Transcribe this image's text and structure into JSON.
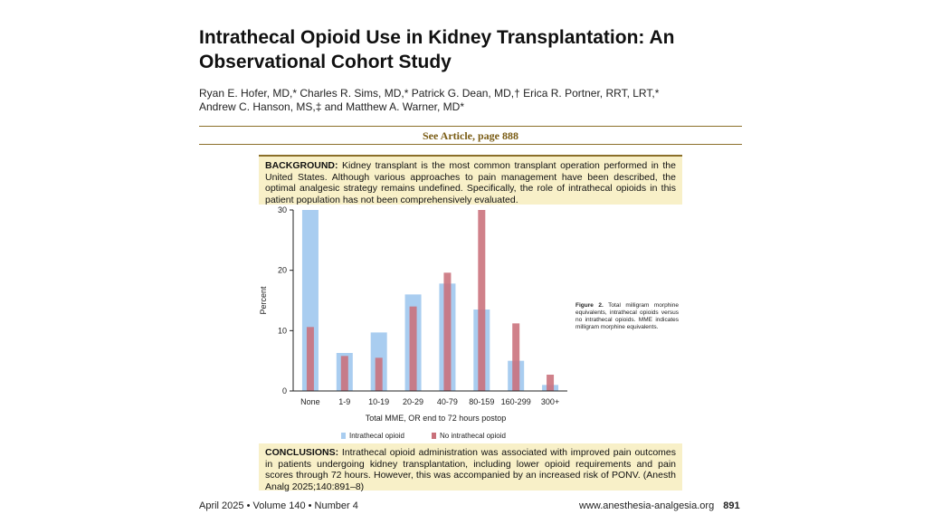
{
  "article": {
    "title": "Intrathecal Opioid Use in Kidney Transplantation: An Observational Cohort Study",
    "authors_line1": "Ryan E. Hofer, MD,* Charles R. Sims, MD,* Patrick G. Dean, MD,† Erica R. Portner, RRT, LRT,*",
    "authors_line2": "Andrew C. Hanson, MS,‡ and Matthew A. Warner, MD*",
    "see_article": "See Article, page 888"
  },
  "background": {
    "label": "BACKGROUND:",
    "text": " Kidney transplant is the most common transplant operation performed in the United States. Although various approaches to pain management have been described, the optimal analgesic strategy remains undefined. Specifically, the role of intrathecal opioids in this patient population has not been comprehensively evaluated."
  },
  "conclusions": {
    "label": "CONCLUSIONS:",
    "text": " Intrathecal opioid administration was associated with improved pain outcomes in patients undergoing kidney transplantation, including lower opioid requirements and pain scores through 72 hours. However, this was accompanied by an increased risk of PONV. (Anesth Analg 2025;140:891–8)"
  },
  "figure_caption": {
    "label": "Figure 2.",
    "text": " Total milligram morphine equivalents, intrathecal opioids versus no intrathecal opioids. MME indicates milligram morphine equivalents."
  },
  "footer": {
    "issue": "April 2025 • Volume 140 • Number 4",
    "website": "www.anesthesia-analgesia.org",
    "page": "891"
  },
  "chart_data": {
    "type": "bar",
    "title": "",
    "xlabel": "Total MME, OR end to 72 hours postop",
    "ylabel": "Percent",
    "ylim": [
      0,
      30
    ],
    "yticks": [
      0,
      10,
      20,
      30
    ],
    "grid": false,
    "legend_position": "bottom",
    "categories": [
      "None",
      "1-9",
      "10-19",
      "20-29",
      "40-79",
      "80-159",
      "160-299",
      "300+"
    ],
    "series": [
      {
        "name": "Intrathecal opioid",
        "color": "#a9cdf0",
        "values": [
          30.0,
          6.3,
          9.7,
          16.0,
          17.8,
          13.5,
          5.0,
          1.0
        ]
      },
      {
        "name": "No intrathecal opioid",
        "color": "#c9707a",
        "values": [
          10.6,
          5.8,
          5.5,
          14.0,
          19.6,
          30.0,
          11.2,
          2.7
        ]
      }
    ]
  }
}
